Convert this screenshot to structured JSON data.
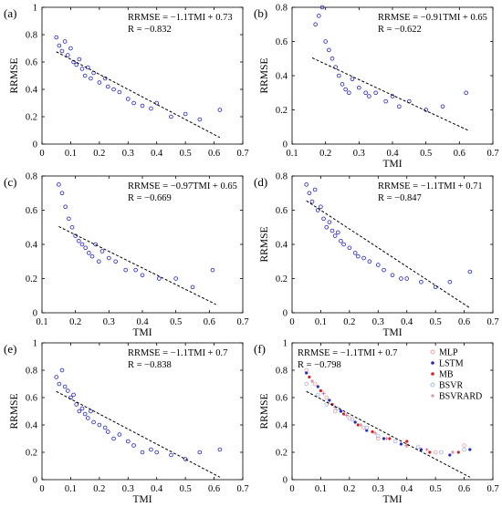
{
  "chart_data": [
    {
      "panel_label": "(a)",
      "type": "scatter",
      "xlabel": "",
      "ylabel": "RRMSE",
      "xlim": [
        0,
        0.7
      ],
      "ylim": [
        0,
        1
      ],
      "xticks": [
        "0",
        "0.1",
        "0.2",
        "0.3",
        "0.4",
        "0.5",
        "0.6",
        "0.7"
      ],
      "yticks": [
        "0",
        "0.2",
        "0.4",
        "0.6",
        "0.8",
        "1"
      ],
      "equation": "RRMSE = −1.1TMI + 0.73",
      "r_text": "R = −0.832",
      "fit": {
        "slope": -1.1,
        "intercept": 0.73,
        "x_range": [
          0.05,
          0.62
        ]
      },
      "points": [
        [
          0.05,
          0.78
        ],
        [
          0.06,
          0.72
        ],
        [
          0.07,
          0.68
        ],
        [
          0.08,
          0.75
        ],
        [
          0.09,
          0.65
        ],
        [
          0.1,
          0.7
        ],
        [
          0.11,
          0.6
        ],
        [
          0.12,
          0.58
        ],
        [
          0.13,
          0.62
        ],
        [
          0.14,
          0.55
        ],
        [
          0.15,
          0.5
        ],
        [
          0.16,
          0.56
        ],
        [
          0.17,
          0.48
        ],
        [
          0.18,
          0.52
        ],
        [
          0.2,
          0.45
        ],
        [
          0.22,
          0.48
        ],
        [
          0.23,
          0.42
        ],
        [
          0.25,
          0.4
        ],
        [
          0.27,
          0.38
        ],
        [
          0.3,
          0.33
        ],
        [
          0.32,
          0.3
        ],
        [
          0.35,
          0.28
        ],
        [
          0.38,
          0.26
        ],
        [
          0.4,
          0.3
        ],
        [
          0.45,
          0.2
        ],
        [
          0.5,
          0.22
        ],
        [
          0.55,
          0.18
        ],
        [
          0.62,
          0.25
        ]
      ],
      "series": [
        {
          "color": "#2323c8"
        }
      ]
    },
    {
      "panel_label": "(b)",
      "type": "scatter",
      "xlabel": "TMI",
      "ylabel": "RRMSE",
      "xlim": [
        0.1,
        0.7
      ],
      "ylim": [
        0,
        0.8
      ],
      "xticks": [
        "0.1",
        "0.2",
        "0.3",
        "0.4",
        "0.5",
        "0.6",
        "0.7"
      ],
      "yticks": [
        "0",
        "0.2",
        "0.4",
        "0.6",
        "0.8"
      ],
      "equation": "RRMSE = −0.91TMI + 0.65",
      "r_text": "R = −0.622",
      "fit": {
        "slope": -0.91,
        "intercept": 0.65,
        "x_range": [
          0.16,
          0.63
        ]
      },
      "points": [
        [
          0.17,
          0.7
        ],
        [
          0.18,
          0.75
        ],
        [
          0.19,
          0.8
        ],
        [
          0.2,
          0.6
        ],
        [
          0.21,
          0.55
        ],
        [
          0.22,
          0.5
        ],
        [
          0.23,
          0.45
        ],
        [
          0.24,
          0.4
        ],
        [
          0.25,
          0.35
        ],
        [
          0.26,
          0.32
        ],
        [
          0.27,
          0.3
        ],
        [
          0.28,
          0.38
        ],
        [
          0.3,
          0.33
        ],
        [
          0.32,
          0.3
        ],
        [
          0.33,
          0.28
        ],
        [
          0.35,
          0.3
        ],
        [
          0.38,
          0.25
        ],
        [
          0.4,
          0.28
        ],
        [
          0.42,
          0.22
        ],
        [
          0.45,
          0.25
        ],
        [
          0.5,
          0.2
        ],
        [
          0.55,
          0.22
        ],
        [
          0.62,
          0.3
        ]
      ],
      "series": [
        {
          "color": "#2323c8"
        }
      ]
    },
    {
      "panel_label": "(c)",
      "type": "scatter",
      "xlabel": "TMI",
      "ylabel": "",
      "xlim": [
        0.1,
        0.7
      ],
      "ylim": [
        0,
        0.8
      ],
      "xticks": [
        "0.1",
        "0.2",
        "0.3",
        "0.4",
        "0.5",
        "0.6",
        "0.7"
      ],
      "yticks": [
        "0",
        "0.2",
        "0.4",
        "0.6",
        "0.8"
      ],
      "equation": "RRMSE = −0.97TMI + 0.65",
      "r_text": "R = −0.669",
      "fit": {
        "slope": -0.97,
        "intercept": 0.65,
        "x_range": [
          0.15,
          0.62
        ]
      },
      "points": [
        [
          0.15,
          0.75
        ],
        [
          0.16,
          0.7
        ],
        [
          0.17,
          0.62
        ],
        [
          0.18,
          0.55
        ],
        [
          0.19,
          0.5
        ],
        [
          0.2,
          0.45
        ],
        [
          0.21,
          0.42
        ],
        [
          0.22,
          0.4
        ],
        [
          0.23,
          0.38
        ],
        [
          0.24,
          0.35
        ],
        [
          0.25,
          0.33
        ],
        [
          0.26,
          0.4
        ],
        [
          0.27,
          0.3
        ],
        [
          0.28,
          0.36
        ],
        [
          0.3,
          0.32
        ],
        [
          0.32,
          0.3
        ],
        [
          0.35,
          0.25
        ],
        [
          0.38,
          0.25
        ],
        [
          0.4,
          0.22
        ],
        [
          0.45,
          0.2
        ],
        [
          0.5,
          0.2
        ],
        [
          0.55,
          0.15
        ],
        [
          0.61,
          0.25
        ]
      ],
      "series": [
        {
          "color": "#2323c8"
        }
      ]
    },
    {
      "panel_label": "(d)",
      "type": "scatter",
      "xlabel": "TMI",
      "ylabel": "RRMSE",
      "xlim": [
        0,
        0.7
      ],
      "ylim": [
        0,
        0.8
      ],
      "xticks": [
        "0",
        "0.1",
        "0.2",
        "0.3",
        "0.4",
        "0.5",
        "0.6",
        "0.7"
      ],
      "yticks": [
        "0",
        "0.2",
        "0.4",
        "0.6",
        "0.8"
      ],
      "equation": "RRMSE = −1.1TMI + 0.71",
      "r_text": "R = −0.847",
      "fit": {
        "slope": -1.1,
        "intercept": 0.71,
        "x_range": [
          0.05,
          0.62
        ]
      },
      "points": [
        [
          0.05,
          0.75
        ],
        [
          0.06,
          0.7
        ],
        [
          0.07,
          0.65
        ],
        [
          0.08,
          0.72
        ],
        [
          0.09,
          0.6
        ],
        [
          0.1,
          0.62
        ],
        [
          0.11,
          0.55
        ],
        [
          0.12,
          0.5
        ],
        [
          0.13,
          0.53
        ],
        [
          0.14,
          0.48
        ],
        [
          0.15,
          0.45
        ],
        [
          0.16,
          0.47
        ],
        [
          0.17,
          0.42
        ],
        [
          0.18,
          0.4
        ],
        [
          0.2,
          0.38
        ],
        [
          0.22,
          0.35
        ],
        [
          0.23,
          0.33
        ],
        [
          0.25,
          0.32
        ],
        [
          0.27,
          0.3
        ],
        [
          0.3,
          0.28
        ],
        [
          0.32,
          0.25
        ],
        [
          0.35,
          0.22
        ],
        [
          0.38,
          0.2
        ],
        [
          0.4,
          0.2
        ],
        [
          0.45,
          0.18
        ],
        [
          0.5,
          0.15
        ],
        [
          0.55,
          0.18
        ],
        [
          0.62,
          0.24
        ]
      ],
      "series": [
        {
          "color": "#2323c8"
        }
      ]
    },
    {
      "panel_label": "(e)",
      "type": "scatter",
      "xlabel": "TMI",
      "ylabel": "RRMSE",
      "xlim": [
        0,
        0.7
      ],
      "ylim": [
        0,
        1
      ],
      "xticks": [
        "0",
        "0.1",
        "0.2",
        "0.3",
        "0.4",
        "0.5",
        "0.6",
        "0.7"
      ],
      "yticks": [
        "0",
        "0.2",
        "0.4",
        "0.6",
        "0.8",
        "1"
      ],
      "equation": "RRMSE = −1.1TMI + 0.7",
      "r_text": "R = −0.838",
      "fit": {
        "slope": -1.1,
        "intercept": 0.7,
        "x_range": [
          0.05,
          0.62
        ]
      },
      "points": [
        [
          0.05,
          0.75
        ],
        [
          0.06,
          0.7
        ],
        [
          0.07,
          0.8
        ],
        [
          0.08,
          0.68
        ],
        [
          0.09,
          0.65
        ],
        [
          0.1,
          0.6
        ],
        [
          0.11,
          0.62
        ],
        [
          0.12,
          0.55
        ],
        [
          0.13,
          0.5
        ],
        [
          0.14,
          0.52
        ],
        [
          0.15,
          0.48
        ],
        [
          0.16,
          0.45
        ],
        [
          0.17,
          0.5
        ],
        [
          0.18,
          0.42
        ],
        [
          0.2,
          0.4
        ],
        [
          0.22,
          0.38
        ],
        [
          0.23,
          0.35
        ],
        [
          0.25,
          0.3
        ],
        [
          0.27,
          0.33
        ],
        [
          0.3,
          0.28
        ],
        [
          0.32,
          0.25
        ],
        [
          0.35,
          0.2
        ],
        [
          0.38,
          0.22
        ],
        [
          0.4,
          0.2
        ],
        [
          0.45,
          0.18
        ],
        [
          0.5,
          0.15
        ],
        [
          0.55,
          0.2
        ],
        [
          0.62,
          0.22
        ]
      ],
      "series": [
        {
          "color": "#2323c8"
        }
      ]
    },
    {
      "panel_label": "(f)",
      "type": "scatter",
      "xlabel": "TMI",
      "ylabel": "RRMSE",
      "xlim": [
        0,
        0.7
      ],
      "ylim": [
        0,
        1
      ],
      "xticks": [
        "0",
        "0.1",
        "0.2",
        "0.3",
        "0.4",
        "0.5",
        "0.6",
        "0.7"
      ],
      "yticks": [
        "0",
        "0.2",
        "0.4",
        "0.6",
        "0.8",
        "1"
      ],
      "equation": "RRMSE = −1.1TMI + 0.7",
      "r_text": "R = −0.798",
      "fit": {
        "slope": -1.1,
        "intercept": 0.7,
        "x_range": [
          0.05,
          0.62
        ]
      },
      "legend_position": "top-right",
      "series": [
        {
          "name": "MLP",
          "color": "#e8a0a0",
          "marker": "circle",
          "points": [
            [
              0.05,
              0.8
            ],
            [
              0.08,
              0.7
            ],
            [
              0.12,
              0.6
            ],
            [
              0.15,
              0.5
            ],
            [
              0.2,
              0.45
            ],
            [
              0.25,
              0.38
            ],
            [
              0.3,
              0.3
            ],
            [
              0.4,
              0.25
            ],
            [
              0.5,
              0.2
            ],
            [
              0.6,
              0.25
            ]
          ]
        },
        {
          "name": "LSTM",
          "color": "#2828c8",
          "marker": "dot",
          "points": [
            [
              0.05,
              0.78
            ],
            [
              0.09,
              0.68
            ],
            [
              0.13,
              0.58
            ],
            [
              0.17,
              0.5
            ],
            [
              0.22,
              0.42
            ],
            [
              0.26,
              0.36
            ],
            [
              0.32,
              0.3
            ],
            [
              0.38,
              0.26
            ],
            [
              0.45,
              0.22
            ],
            [
              0.55,
              0.18
            ],
            [
              0.62,
              0.22
            ]
          ]
        },
        {
          "name": "MB",
          "color": "#e02020",
          "marker": "dot",
          "points": [
            [
              0.06,
              0.75
            ],
            [
              0.1,
              0.65
            ],
            [
              0.14,
              0.55
            ],
            [
              0.18,
              0.48
            ],
            [
              0.23,
              0.4
            ],
            [
              0.28,
              0.35
            ],
            [
              0.34,
              0.3
            ],
            [
              0.4,
              0.28
            ],
            [
              0.48,
              0.2
            ],
            [
              0.58,
              0.2
            ]
          ]
        },
        {
          "name": "BSVR",
          "color": "#a0b4e8",
          "marker": "circle",
          "points": [
            [
              0.05,
              0.7
            ],
            [
              0.09,
              0.62
            ],
            [
              0.12,
              0.55
            ],
            [
              0.16,
              0.52
            ],
            [
              0.21,
              0.44
            ],
            [
              0.26,
              0.38
            ],
            [
              0.3,
              0.32
            ],
            [
              0.36,
              0.28
            ],
            [
              0.44,
              0.24
            ],
            [
              0.52,
              0.2
            ],
            [
              0.6,
              0.22
            ]
          ]
        },
        {
          "name": "BSVRARD",
          "color": "#d070a0",
          "marker": "plus",
          "points": [
            [
              0.07,
              0.72
            ],
            [
              0.11,
              0.63
            ],
            [
              0.15,
              0.53
            ],
            [
              0.19,
              0.47
            ],
            [
              0.24,
              0.4
            ],
            [
              0.29,
              0.34
            ],
            [
              0.33,
              0.3
            ],
            [
              0.4,
              0.25
            ],
            [
              0.47,
              0.22
            ],
            [
              0.56,
              0.2
            ]
          ]
        }
      ]
    }
  ]
}
